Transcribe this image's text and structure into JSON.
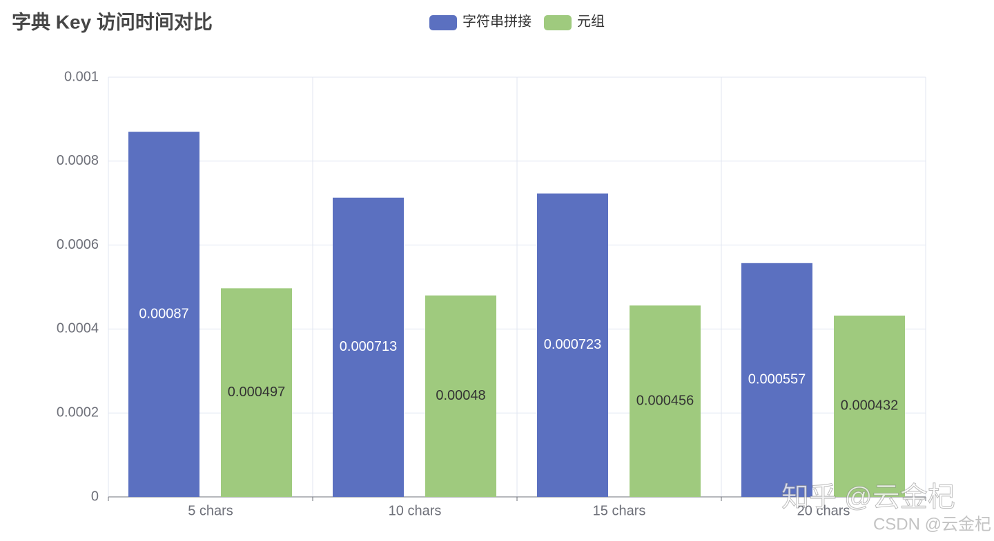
{
  "chart_data": {
    "type": "bar",
    "title": "字典 Key 访问时间对比",
    "categories": [
      "5 chars",
      "10 chars",
      "15 chars",
      "20 chars"
    ],
    "series": [
      {
        "name": "字符串拼接",
        "color": "#5b70c0",
        "values": [
          0.00087,
          0.000713,
          0.000723,
          0.000557
        ]
      },
      {
        "name": "元组",
        "color": "#9fca7e",
        "values": [
          0.000497,
          0.00048,
          0.000456,
          0.000432
        ]
      }
    ],
    "ylim": [
      0,
      0.001
    ],
    "yticks": [
      0,
      0.0002,
      0.0004,
      0.0006,
      0.0008,
      0.001
    ],
    "grid": true,
    "legend": "top",
    "watermarks": [
      "知乎 @云金杞",
      "CSDN @云金杞"
    ]
  }
}
